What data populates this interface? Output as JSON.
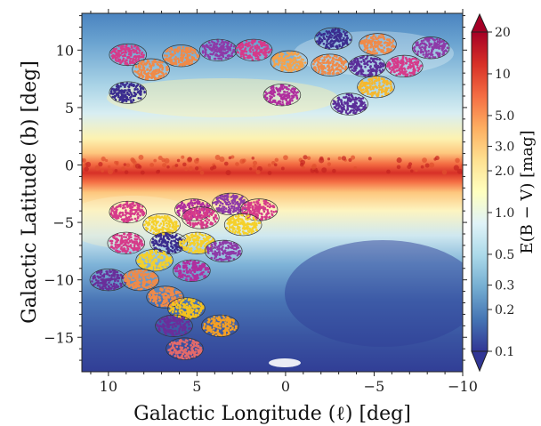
{
  "chart_data": {
    "type": "scatter",
    "title": "",
    "xlabel": "Galactic Longitude (ℓ) [deg]",
    "ylabel": "Galactic Latitude (b) [deg]",
    "xlim": [
      11.5,
      -10
    ],
    "ylim": [
      -18,
      13.2
    ],
    "x_ticks": [
      10,
      5,
      0,
      -5,
      -10
    ],
    "y_ticks": [
      10,
      5,
      0,
      -5,
      -10,
      -15
    ],
    "grid": false,
    "background": "extinction map E(B − V), red band along b = 0, blue at high |b|",
    "colorbar": {
      "label": "E(B − V) [mag]",
      "scale": "log",
      "range": [
        0.1,
        20
      ],
      "ticks": [
        20,
        10,
        5.0,
        3.0,
        2.0,
        1.0,
        0.5,
        0.3,
        0.2,
        0.1
      ],
      "colors": [
        "#313695",
        "#4575b4",
        "#74add1",
        "#abd9e9",
        "#e0f3f8",
        "#ffffbf",
        "#fee090",
        "#fdae61",
        "#f46d43",
        "#d73027",
        "#a50026"
      ]
    },
    "fields": [
      {
        "l": 8.9,
        "b": 9.6,
        "color": "#d63a8a"
      },
      {
        "l": 7.6,
        "b": 8.3,
        "color": "#f08a48"
      },
      {
        "l": 5.9,
        "b": 9.5,
        "color": "#f08a48"
      },
      {
        "l": 3.8,
        "b": 10.0,
        "color": "#8e3aa8"
      },
      {
        "l": 1.8,
        "b": 10.0,
        "color": "#d63a8a"
      },
      {
        "l": -0.2,
        "b": 9.0,
        "color": "#f5a24a"
      },
      {
        "l": 8.9,
        "b": 6.3,
        "color": "#3b2d8f"
      },
      {
        "l": 0.2,
        "b": 6.1,
        "color": "#b02e9e"
      },
      {
        "l": -2.7,
        "b": 11.0,
        "color": "#3b2d8f"
      },
      {
        "l": -5.2,
        "b": 10.5,
        "color": "#f08a48"
      },
      {
        "l": -8.2,
        "b": 10.2,
        "color": "#8e3aa8"
      },
      {
        "l": -2.5,
        "b": 8.7,
        "color": "#f08a48"
      },
      {
        "l": -4.6,
        "b": 8.6,
        "color": "#5b2e99"
      },
      {
        "l": -6.7,
        "b": 8.6,
        "color": "#d63a8a"
      },
      {
        "l": -5.1,
        "b": 6.8,
        "color": "#f5b82e"
      },
      {
        "l": -3.6,
        "b": 5.3,
        "color": "#5b2e99"
      },
      {
        "l": 8.9,
        "b": -4.1,
        "color": "#d63a8a"
      },
      {
        "l": 5.2,
        "b": -3.9,
        "color": "#b02e9e"
      },
      {
        "l": 3.1,
        "b": -3.4,
        "color": "#8e3aa8"
      },
      {
        "l": 1.5,
        "b": -3.9,
        "color": "#d63a8a"
      },
      {
        "l": 4.8,
        "b": -4.6,
        "color": "#d63a8a"
      },
      {
        "l": 7.0,
        "b": -5.2,
        "color": "#f5d02a"
      },
      {
        "l": 2.4,
        "b": -5.2,
        "color": "#f5d02a"
      },
      {
        "l": 9.0,
        "b": -6.8,
        "color": "#d63a8a"
      },
      {
        "l": 6.6,
        "b": -6.8,
        "color": "#3b2d8f"
      },
      {
        "l": 5.0,
        "b": -6.8,
        "color": "#f5d02a"
      },
      {
        "l": 3.5,
        "b": -7.5,
        "color": "#8e3aa8"
      },
      {
        "l": 7.4,
        "b": -8.3,
        "color": "#f5d02a"
      },
      {
        "l": 5.3,
        "b": -9.2,
        "color": "#b02e9e"
      },
      {
        "l": 10.0,
        "b": -10.0,
        "color": "#6a2e9a"
      },
      {
        "l": 8.2,
        "b": -10.0,
        "color": "#f08a48"
      },
      {
        "l": 6.8,
        "b": -11.5,
        "color": "#f08a48"
      },
      {
        "l": 5.6,
        "b": -12.5,
        "color": "#f5c21e"
      },
      {
        "l": 6.3,
        "b": -14.0,
        "color": "#6a2e9a"
      },
      {
        "l": 3.7,
        "b": -14.0,
        "color": "#f5a024"
      },
      {
        "l": 5.7,
        "b": -16.0,
        "color": "#e36a6a"
      }
    ]
  }
}
